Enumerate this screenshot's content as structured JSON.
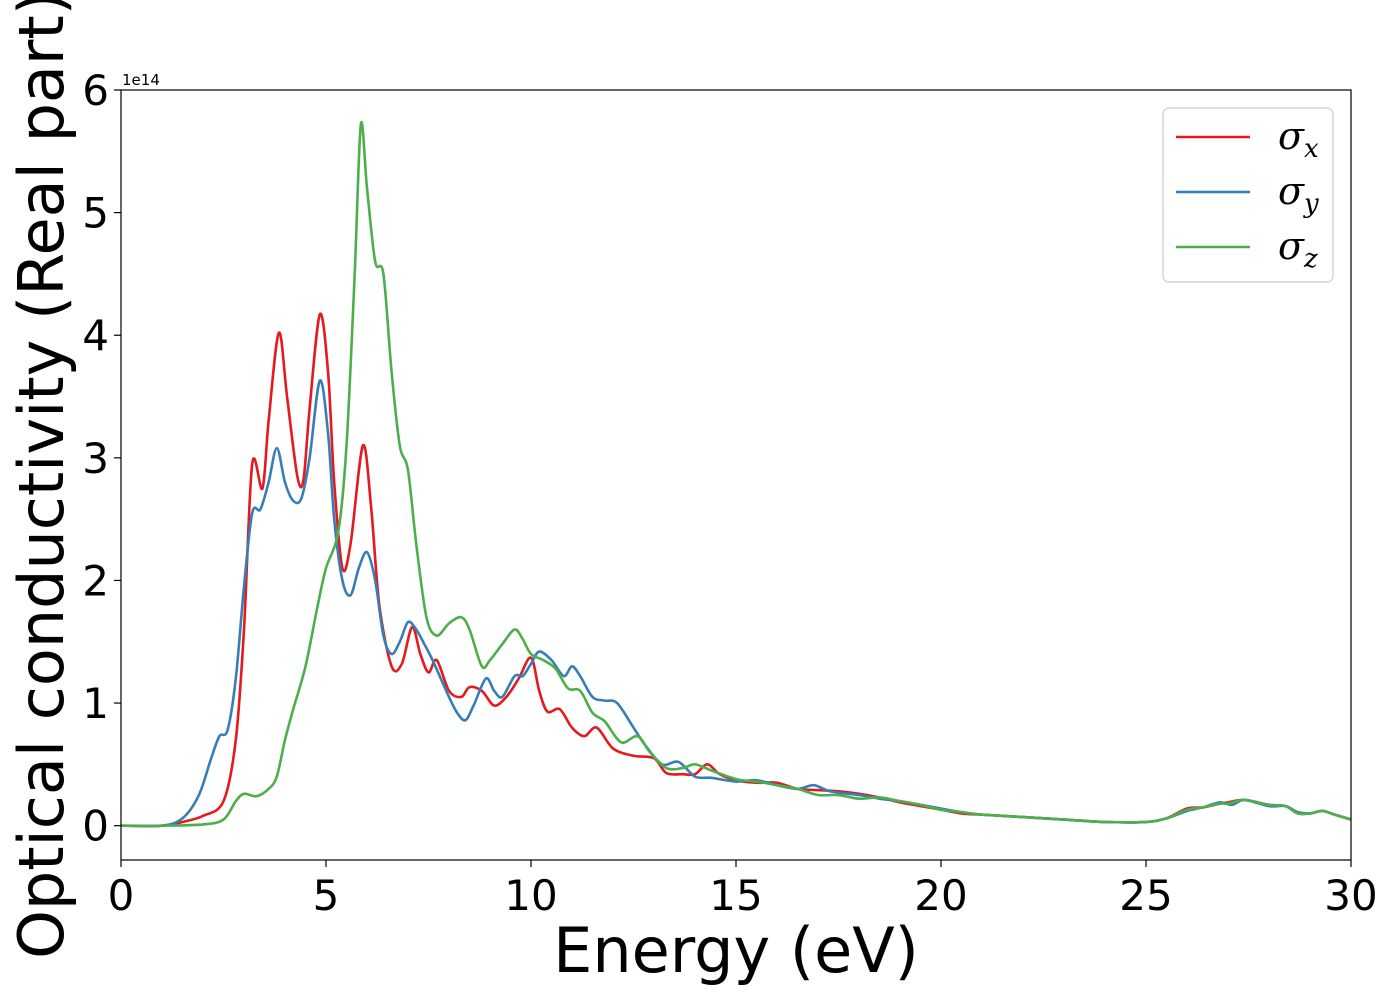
{
  "chart_data": {
    "type": "line",
    "title": "",
    "xlabel": "Energy (eV)",
    "ylabel": "Optical conductivity (Real part)",
    "y_offset_label": "1e14",
    "xlim": [
      0,
      30
    ],
    "ylim": [
      -0.28,
      6.0
    ],
    "x_ticks": [
      0,
      5,
      10,
      15,
      20,
      25,
      30
    ],
    "x_tick_labels": [
      "0",
      "5",
      "10",
      "15",
      "20",
      "25",
      "30"
    ],
    "y_ticks": [
      0,
      1,
      2,
      3,
      4,
      5,
      6
    ],
    "y_tick_labels": [
      "0",
      "1",
      "2",
      "3",
      "4",
      "5",
      "6"
    ],
    "grid": false,
    "legend_position": "top-right",
    "series": [
      {
        "name": "σ",
        "subscript": "x",
        "color": "#e41a1c",
        "points": [
          [
            0,
            0
          ],
          [
            1,
            0.0
          ],
          [
            1.5,
            0.03
          ],
          [
            2,
            0.08
          ],
          [
            2.5,
            0.2
          ],
          [
            2.8,
            0.7
          ],
          [
            3.0,
            1.6
          ],
          [
            3.2,
            2.95
          ],
          [
            3.45,
            2.75
          ],
          [
            3.6,
            3.3
          ],
          [
            3.85,
            4.02
          ],
          [
            4.05,
            3.5
          ],
          [
            4.3,
            2.85
          ],
          [
            4.45,
            2.82
          ],
          [
            4.6,
            3.4
          ],
          [
            4.85,
            4.17
          ],
          [
            5.05,
            3.7
          ],
          [
            5.2,
            2.8
          ],
          [
            5.4,
            2.1
          ],
          [
            5.6,
            2.3
          ],
          [
            5.9,
            3.1
          ],
          [
            6.1,
            2.6
          ],
          [
            6.3,
            1.8
          ],
          [
            6.6,
            1.3
          ],
          [
            6.85,
            1.32
          ],
          [
            7.1,
            1.62
          ],
          [
            7.3,
            1.4
          ],
          [
            7.5,
            1.25
          ],
          [
            7.7,
            1.35
          ],
          [
            8.0,
            1.1
          ],
          [
            8.3,
            1.05
          ],
          [
            8.5,
            1.13
          ],
          [
            8.8,
            1.1
          ],
          [
            9.1,
            0.98
          ],
          [
            9.4,
            1.05
          ],
          [
            9.7,
            1.2
          ],
          [
            10.0,
            1.37
          ],
          [
            10.2,
            1.1
          ],
          [
            10.4,
            0.93
          ],
          [
            10.7,
            0.95
          ],
          [
            11.0,
            0.8
          ],
          [
            11.3,
            0.73
          ],
          [
            11.6,
            0.8
          ],
          [
            12.0,
            0.63
          ],
          [
            12.5,
            0.57
          ],
          [
            13.0,
            0.55
          ],
          [
            13.3,
            0.43
          ],
          [
            13.7,
            0.42
          ],
          [
            14.0,
            0.42
          ],
          [
            14.3,
            0.5
          ],
          [
            14.6,
            0.42
          ],
          [
            15.0,
            0.37
          ],
          [
            15.5,
            0.35
          ],
          [
            16.0,
            0.35
          ],
          [
            16.5,
            0.3
          ],
          [
            17.0,
            0.29
          ],
          [
            17.5,
            0.28
          ],
          [
            18.0,
            0.26
          ],
          [
            18.5,
            0.23
          ],
          [
            19.0,
            0.19
          ],
          [
            19.5,
            0.16
          ],
          [
            20.0,
            0.13
          ],
          [
            20.5,
            0.1
          ],
          [
            21.0,
            0.09
          ],
          [
            21.5,
            0.08
          ],
          [
            22.0,
            0.07
          ],
          [
            23.0,
            0.05
          ],
          [
            24.0,
            0.03
          ],
          [
            25.0,
            0.03
          ],
          [
            25.5,
            0.06
          ],
          [
            26.0,
            0.14
          ],
          [
            26.4,
            0.15
          ],
          [
            26.8,
            0.18
          ],
          [
            27.0,
            0.19
          ],
          [
            27.4,
            0.21
          ],
          [
            28.0,
            0.17
          ],
          [
            28.4,
            0.16
          ],
          [
            28.7,
            0.1
          ],
          [
            29.0,
            0.1
          ],
          [
            29.3,
            0.12
          ],
          [
            29.6,
            0.09
          ],
          [
            30.0,
            0.05
          ]
        ]
      },
      {
        "name": "σ",
        "subscript": "y",
        "color": "#377eb8",
        "points": [
          [
            0,
            0
          ],
          [
            1,
            0.0
          ],
          [
            1.5,
            0.06
          ],
          [
            1.9,
            0.25
          ],
          [
            2.2,
            0.55
          ],
          [
            2.4,
            0.73
          ],
          [
            2.6,
            0.78
          ],
          [
            2.8,
            1.2
          ],
          [
            3.0,
            1.95
          ],
          [
            3.2,
            2.55
          ],
          [
            3.4,
            2.58
          ],
          [
            3.6,
            2.8
          ],
          [
            3.8,
            3.08
          ],
          [
            4.0,
            2.8
          ],
          [
            4.2,
            2.65
          ],
          [
            4.4,
            2.67
          ],
          [
            4.6,
            3.0
          ],
          [
            4.85,
            3.63
          ],
          [
            5.05,
            3.2
          ],
          [
            5.2,
            2.5
          ],
          [
            5.4,
            2.0
          ],
          [
            5.6,
            1.88
          ],
          [
            5.8,
            2.1
          ],
          [
            6.0,
            2.23
          ],
          [
            6.2,
            2.0
          ],
          [
            6.4,
            1.55
          ],
          [
            6.6,
            1.4
          ],
          [
            6.8,
            1.5
          ],
          [
            7.0,
            1.66
          ],
          [
            7.2,
            1.6
          ],
          [
            7.4,
            1.48
          ],
          [
            7.6,
            1.35
          ],
          [
            7.8,
            1.2
          ],
          [
            8.0,
            1.05
          ],
          [
            8.2,
            0.92
          ],
          [
            8.4,
            0.86
          ],
          [
            8.6,
            0.98
          ],
          [
            8.9,
            1.2
          ],
          [
            9.1,
            1.1
          ],
          [
            9.3,
            1.05
          ],
          [
            9.6,
            1.22
          ],
          [
            9.8,
            1.22
          ],
          [
            10.0,
            1.32
          ],
          [
            10.2,
            1.42
          ],
          [
            10.5,
            1.35
          ],
          [
            10.8,
            1.22
          ],
          [
            11.0,
            1.3
          ],
          [
            11.2,
            1.22
          ],
          [
            11.5,
            1.05
          ],
          [
            11.8,
            1.02
          ],
          [
            12.1,
            1.0
          ],
          [
            12.5,
            0.8
          ],
          [
            12.8,
            0.65
          ],
          [
            13.2,
            0.5
          ],
          [
            13.6,
            0.52
          ],
          [
            14.0,
            0.4
          ],
          [
            14.4,
            0.39
          ],
          [
            15.0,
            0.36
          ],
          [
            15.5,
            0.37
          ],
          [
            16.0,
            0.33
          ],
          [
            16.5,
            0.3
          ],
          [
            16.9,
            0.33
          ],
          [
            17.3,
            0.28
          ],
          [
            18.0,
            0.25
          ],
          [
            18.5,
            0.22
          ],
          [
            19.0,
            0.2
          ],
          [
            19.5,
            0.17
          ],
          [
            20.0,
            0.14
          ],
          [
            20.5,
            0.11
          ],
          [
            21.0,
            0.09
          ],
          [
            21.5,
            0.08
          ],
          [
            22.0,
            0.07
          ],
          [
            23.0,
            0.05
          ],
          [
            24.0,
            0.03
          ],
          [
            25.0,
            0.03
          ],
          [
            25.5,
            0.06
          ],
          [
            26.0,
            0.12
          ],
          [
            26.4,
            0.15
          ],
          [
            26.8,
            0.19
          ],
          [
            27.1,
            0.17
          ],
          [
            27.4,
            0.21
          ],
          [
            28.0,
            0.16
          ],
          [
            28.4,
            0.16
          ],
          [
            28.7,
            0.11
          ],
          [
            29.0,
            0.1
          ],
          [
            29.3,
            0.12
          ],
          [
            29.6,
            0.09
          ],
          [
            30.0,
            0.05
          ]
        ]
      },
      {
        "name": "σ",
        "subscript": "z",
        "color": "#4daf4a",
        "points": [
          [
            0,
            0
          ],
          [
            1,
            0.0
          ],
          [
            2,
            0.01
          ],
          [
            2.5,
            0.05
          ],
          [
            2.8,
            0.2
          ],
          [
            3.0,
            0.26
          ],
          [
            3.3,
            0.24
          ],
          [
            3.6,
            0.3
          ],
          [
            3.8,
            0.4
          ],
          [
            4.0,
            0.7
          ],
          [
            4.2,
            0.95
          ],
          [
            4.5,
            1.3
          ],
          [
            4.8,
            1.8
          ],
          [
            5.0,
            2.1
          ],
          [
            5.3,
            2.4
          ],
          [
            5.5,
            3.1
          ],
          [
            5.7,
            4.5
          ],
          [
            5.85,
            5.72
          ],
          [
            6.0,
            5.2
          ],
          [
            6.2,
            4.6
          ],
          [
            6.4,
            4.5
          ],
          [
            6.6,
            3.7
          ],
          [
            6.8,
            3.1
          ],
          [
            7.0,
            2.9
          ],
          [
            7.2,
            2.3
          ],
          [
            7.45,
            1.7
          ],
          [
            7.7,
            1.55
          ],
          [
            8.0,
            1.65
          ],
          [
            8.3,
            1.7
          ],
          [
            8.5,
            1.6
          ],
          [
            8.8,
            1.3
          ],
          [
            9.0,
            1.35
          ],
          [
            9.3,
            1.48
          ],
          [
            9.6,
            1.6
          ],
          [
            9.8,
            1.52
          ],
          [
            10.0,
            1.4
          ],
          [
            10.3,
            1.35
          ],
          [
            10.6,
            1.28
          ],
          [
            10.9,
            1.12
          ],
          [
            11.2,
            1.1
          ],
          [
            11.5,
            0.92
          ],
          [
            11.8,
            0.85
          ],
          [
            12.2,
            0.68
          ],
          [
            12.6,
            0.73
          ],
          [
            12.9,
            0.6
          ],
          [
            13.3,
            0.47
          ],
          [
            13.7,
            0.47
          ],
          [
            14.0,
            0.5
          ],
          [
            14.4,
            0.45
          ],
          [
            15.0,
            0.38
          ],
          [
            15.5,
            0.36
          ],
          [
            16.0,
            0.33
          ],
          [
            16.5,
            0.3
          ],
          [
            17.0,
            0.25
          ],
          [
            17.5,
            0.25
          ],
          [
            18.0,
            0.22
          ],
          [
            18.5,
            0.23
          ],
          [
            19.0,
            0.2
          ],
          [
            19.5,
            0.17
          ],
          [
            20.0,
            0.13
          ],
          [
            20.5,
            0.11
          ],
          [
            21.0,
            0.09
          ],
          [
            21.5,
            0.08
          ],
          [
            22.0,
            0.07
          ],
          [
            23.0,
            0.05
          ],
          [
            24.0,
            0.03
          ],
          [
            25.0,
            0.03
          ],
          [
            25.5,
            0.06
          ],
          [
            26.0,
            0.13
          ],
          [
            26.4,
            0.15
          ],
          [
            26.8,
            0.18
          ],
          [
            27.0,
            0.18
          ],
          [
            27.4,
            0.21
          ],
          [
            28.0,
            0.17
          ],
          [
            28.4,
            0.16
          ],
          [
            28.7,
            0.1
          ],
          [
            29.0,
            0.1
          ],
          [
            29.3,
            0.12
          ],
          [
            29.6,
            0.09
          ],
          [
            30.0,
            0.05
          ]
        ]
      }
    ]
  }
}
